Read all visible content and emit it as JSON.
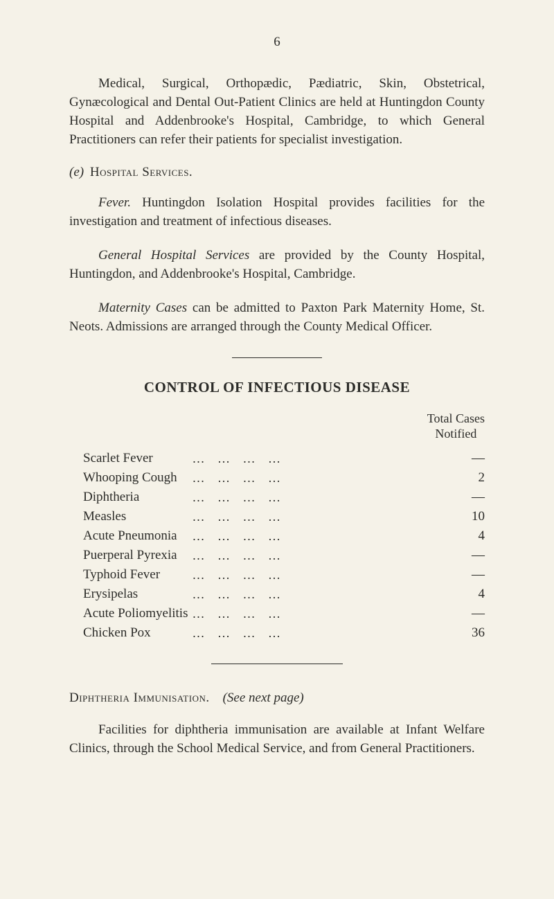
{
  "page_number": "6",
  "colors": {
    "paper_bg": "#f5f2e8",
    "text": "#2b2b28"
  },
  "paragraphs": {
    "intro": "Medical, Surgical, Orthopædic, Pædiatric, Skin, Obstetrical, Gynæcological and Dental Out-Patient Clinics are held at Huntingdon County Hospital and Addenbrooke's Hospital, Cambridge, to which General Practitioners can refer their patients for specialist investigation.",
    "section_e_label_letter": "(e)",
    "section_e_label_text": "Hospital Services.",
    "fever_lead": "Fever.",
    "fever_body": "Huntingdon Isolation Hospital provides facilities for the investigation and treatment of infectious diseases.",
    "general_lead": "General Hospital Services",
    "general_body": "are provided by the County Hospital, Huntingdon, and Addenbrooke's Hospital, Cambridge.",
    "maternity_lead": "Maternity Cases",
    "maternity_body": "can be admitted to Paxton Park Maternity Home, St. Neots. Admissions are arranged through the County Medical Officer.",
    "diphtheria_label": "Diphtheria Immunisation.",
    "diphtheria_see": "(See next page)",
    "facilities": "Facilities for diphtheria immunisation are available at Infant Welfare Clinics, through the School Medical Service, and from General Practitioners."
  },
  "control_heading": "CONTROL OF INFECTIOUS DISEASE",
  "table": {
    "header_line1": "Total Cases",
    "header_line2": "Notified",
    "rows": [
      {
        "name": "Scarlet Fever",
        "value": "—"
      },
      {
        "name": "Whooping Cough",
        "value": "2"
      },
      {
        "name": "Diphtheria",
        "value": "—"
      },
      {
        "name": "Measles",
        "value": "10"
      },
      {
        "name": "Acute Pneumonia",
        "value": "4"
      },
      {
        "name": "Puerperal Pyrexia",
        "value": "—"
      },
      {
        "name": "Typhoid Fever",
        "value": "—"
      },
      {
        "name": "Erysipelas",
        "value": "4"
      },
      {
        "name": "Acute Poliomyelitis",
        "value": "—"
      },
      {
        "name": "Chicken Pox",
        "value": "36"
      }
    ],
    "leader_dots": "…   …   …   …",
    "name_fontsize": 19,
    "value_fontsize": 19
  }
}
